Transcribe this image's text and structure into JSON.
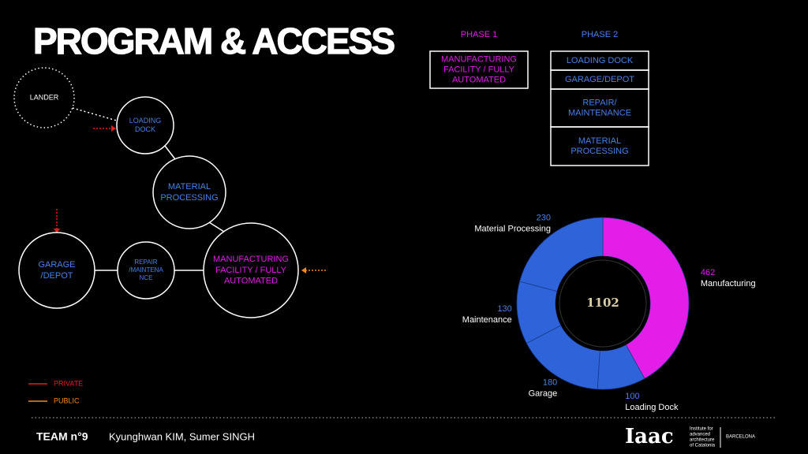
{
  "title": "PROGRAM & ACCESS",
  "diagram": {
    "nodes": [
      {
        "lines": [
          "LANDER"
        ]
      },
      {
        "lines": [
          "LOADING",
          "DOCK"
        ]
      },
      {
        "lines": [
          "MATERIAL",
          "PROCESSING"
        ]
      },
      {
        "lines": [
          "MANUFACTURING",
          "FACILITY / FULLY",
          "AUTOMATED"
        ]
      },
      {
        "lines": [
          "REPAIR",
          "/MAINTENA",
          "NCE"
        ]
      },
      {
        "lines": [
          "GARAGE",
          "/DEPOT"
        ]
      }
    ],
    "legend": [
      "PRIVATE",
      "PUBLIC"
    ]
  },
  "phases": [
    {
      "title": "PHASE 1",
      "items": [
        [
          "MANUFACTURING",
          "FACILITY / FULLY",
          "AUTOMATED"
        ]
      ]
    },
    {
      "title": "PHASE 2",
      "items": [
        [
          "LOADING DOCK"
        ],
        [
          "GARAGE/DEPOT"
        ],
        [
          "REPAIR/",
          "MAINTENANCE"
        ],
        [
          "MATERIAL",
          "PROCESSING"
        ]
      ]
    }
  ],
  "chart_data": {
    "type": "donut",
    "categories": [
      "Manufacturing",
      "Loading Dock",
      "Garage",
      "Maintenance",
      "Material Processing"
    ],
    "values": [
      462,
      100,
      180,
      130,
      230
    ],
    "colors": [
      "#e21ee8",
      "#2e63d9",
      "#2e63d9",
      "#2e63d9",
      "#2e63d9"
    ],
    "total": 1102
  },
  "footer": {
    "team": "TEAM n°9",
    "authors": "Kyunghwan KIM, Sumer SINGH",
    "logo": "Iaac",
    "institute": [
      "Institute for",
      "advanced",
      "architecture",
      "of Catalonia"
    ],
    "city": "BARCELONA"
  }
}
